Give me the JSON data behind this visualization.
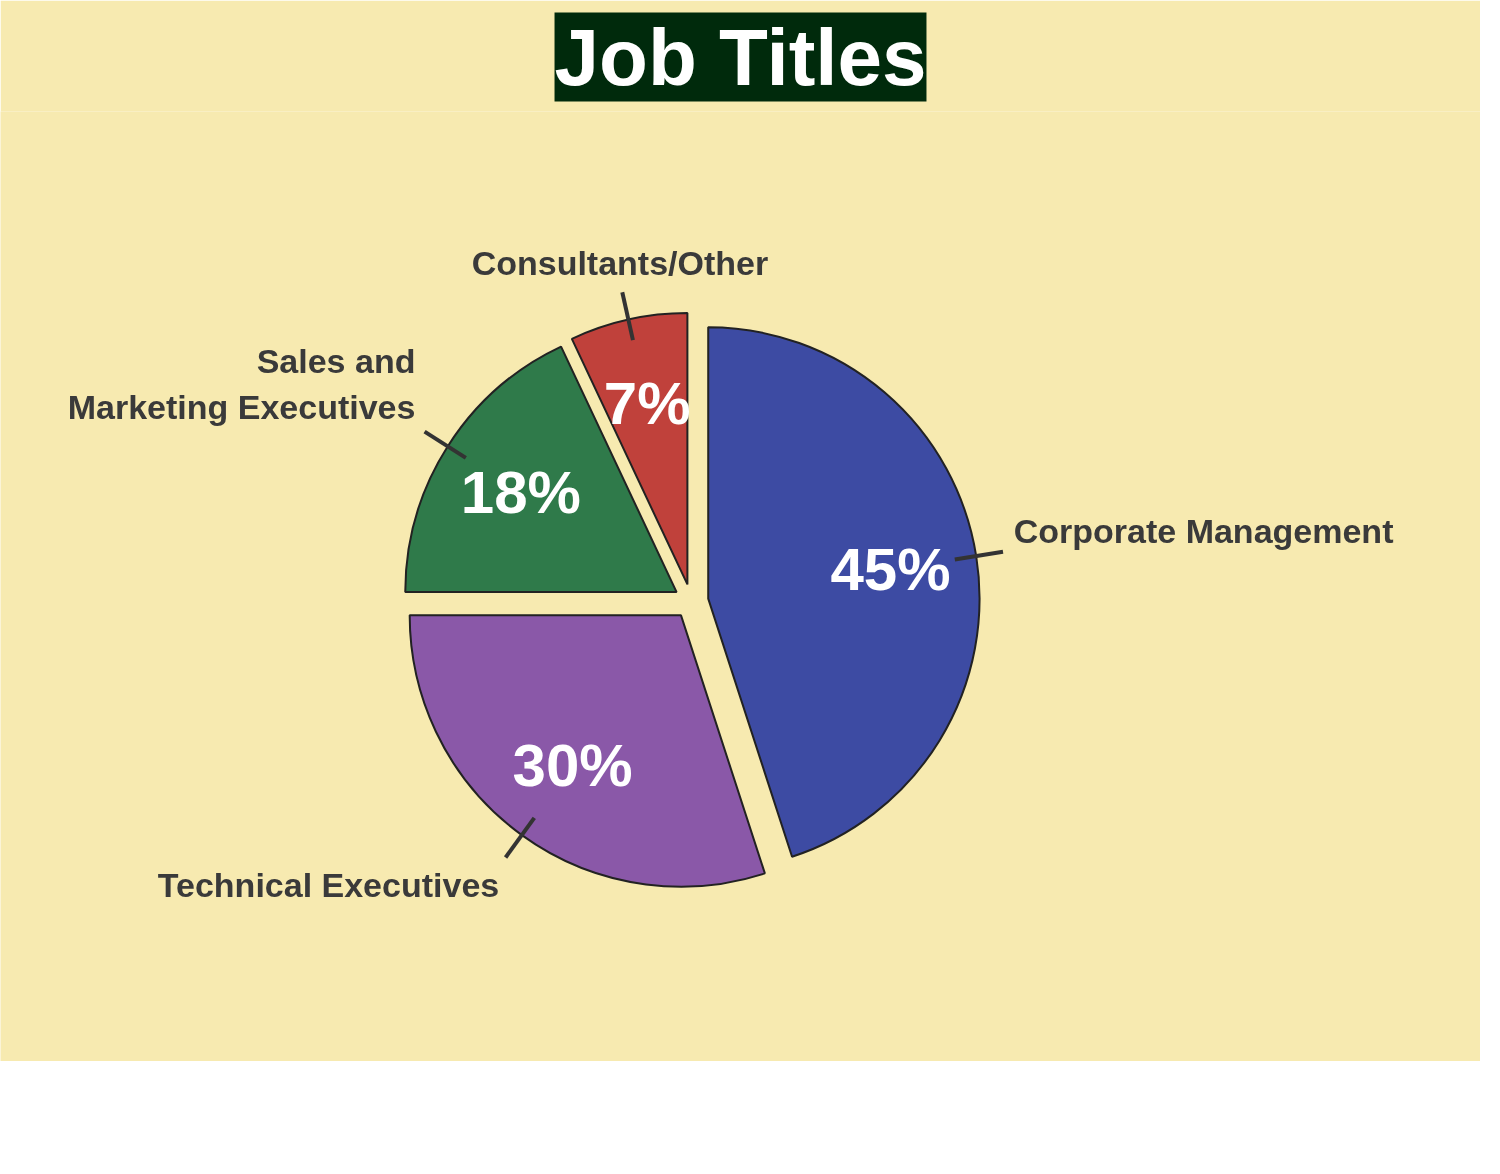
{
  "chart_data": {
    "type": "pie",
    "title": "Job Titles",
    "categories": [
      "Corporate Management",
      "Technical Executives",
      "Sales and\nMarketing Executives",
      "Consultants/Other"
    ],
    "values": [
      45,
      30,
      18,
      7
    ],
    "value_labels": [
      "45%",
      "30%",
      "18%",
      "7%"
    ],
    "colors": [
      "#3d4ba3",
      "#8a58a8",
      "#2f7a4a",
      "#c0413b"
    ]
  }
}
